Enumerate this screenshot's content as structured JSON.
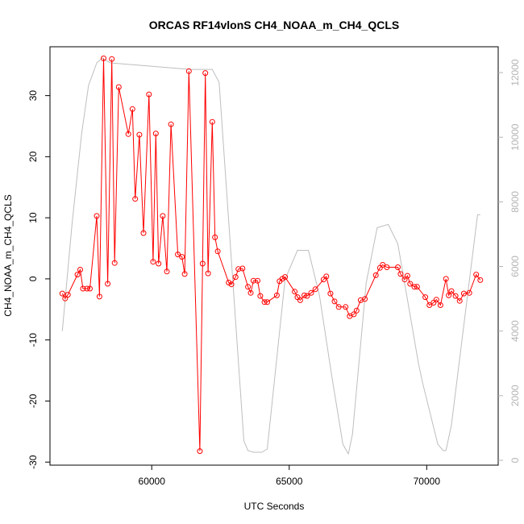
{
  "chart_data": {
    "type": "line",
    "title": "ORCAS RF14vlonS CH4_NOAA_m_CH4_QCLS",
    "xlabel": "UTC Seconds",
    "ylabel": "CH4_NOAA_m_CH4_QCLS",
    "xlim": [
      56300,
      72600
    ],
    "ylim": [
      -30.5,
      38.0
    ],
    "y2lim": [
      -150,
      12800
    ],
    "x_ticks": [
      60000,
      65000,
      70000
    ],
    "y_ticks": [
      -30,
      -20,
      -10,
      0,
      10,
      20,
      30
    ],
    "y2_ticks": [
      0,
      2000,
      4000,
      6000,
      8000,
      10000,
      12000
    ],
    "grid": false,
    "series": [
      {
        "color": "#ff0000",
        "axis": "left",
        "style": "line+markers",
        "x": [
          56750,
          56850,
          56950,
          57300,
          57400,
          57500,
          57650,
          57750,
          58000,
          58100,
          58250,
          58400,
          58550,
          58650,
          58800,
          59150,
          59300,
          59400,
          59550,
          59700,
          59900,
          60050,
          60150,
          60250,
          60400,
          60550,
          60700,
          60950,
          61100,
          61200,
          61350,
          61750,
          61850,
          61950,
          62050,
          62200,
          62300,
          62400,
          62800,
          62900,
          63050,
          63150,
          63300,
          63500,
          63600,
          63700,
          63850,
          63950,
          64100,
          64200,
          64550,
          64650,
          64750,
          64850,
          65200,
          65300,
          65400,
          65550,
          65650,
          65800,
          65950,
          66250,
          66350,
          66500,
          66650,
          66800,
          67050,
          67200,
          67350,
          67450,
          67600,
          67750,
          68150,
          68300,
          68400,
          68550,
          68950,
          69050,
          69200,
          69300,
          69400,
          69550,
          69650,
          69950,
          70100,
          70250,
          70350,
          70500,
          70700,
          70800,
          70900,
          71050,
          71200,
          71350,
          71550,
          71800,
          71950
        ],
        "y": [
          -2.4,
          -3.2,
          -2.6,
          0.7,
          1.5,
          -1.6,
          -1.6,
          -1.6,
          10.3,
          -2.9,
          36.1,
          -0.8,
          36.0,
          2.6,
          31.4,
          23.7,
          27.8,
          13.1,
          23.6,
          7.5,
          30.2,
          2.8,
          23.8,
          2.5,
          10.3,
          1.2,
          25.3,
          4.0,
          3.6,
          0.8,
          34.0,
          -28.2,
          2.5,
          33.7,
          0.9,
          25.7,
          6.8,
          4.5,
          -0.6,
          -0.9,
          0.3,
          1.6,
          1.7,
          -1.3,
          -2.3,
          -0.3,
          -0.3,
          -2.8,
          -3.8,
          -3.8,
          -2.7,
          -0.4,
          0.0,
          0.3,
          -2.1,
          -3.0,
          -3.5,
          -2.7,
          -2.8,
          -2.3,
          -1.7,
          -0.1,
          0.4,
          -2.4,
          -3.7,
          -4.6,
          -4.6,
          -6.1,
          -5.8,
          -5.2,
          -3.5,
          -3.3,
          0.6,
          1.8,
          2.3,
          1.9,
          1.9,
          0.8,
          -0.1,
          0.5,
          -0.8,
          -1.3,
          -1.3,
          -3.0,
          -4.3,
          -3.9,
          -3.4,
          -4.3,
          0.0,
          -2.7,
          -2.0,
          -2.8,
          -3.6,
          -2.4,
          -2.3,
          0.7,
          -0.2
        ]
      },
      {
        "color": "#bebebe",
        "axis": "right",
        "style": "line",
        "x": [
          56750,
          57100,
          57450,
          57700,
          58000,
          58200,
          58500,
          61400,
          62200,
          62450,
          63350,
          63500,
          63700,
          64000,
          64200,
          64850,
          65300,
          65700,
          66100,
          66550,
          66950,
          67150,
          67300,
          67800,
          68200,
          68600,
          68950,
          69700,
          69850,
          70200,
          70400,
          70600,
          70700,
          70900,
          71850,
          71950
        ],
        "y": [
          4000,
          7300,
          10100,
          11600,
          12300,
          12450,
          12300,
          12100,
          12100,
          11700,
          600,
          300,
          250,
          250,
          350,
          5600,
          6500,
          6500,
          5100,
          2600,
          500,
          200,
          800,
          5500,
          7200,
          7300,
          6700,
          3000,
          2400,
          1200,
          500,
          300,
          300,
          1100,
          7600,
          7600
        ]
      }
    ]
  }
}
